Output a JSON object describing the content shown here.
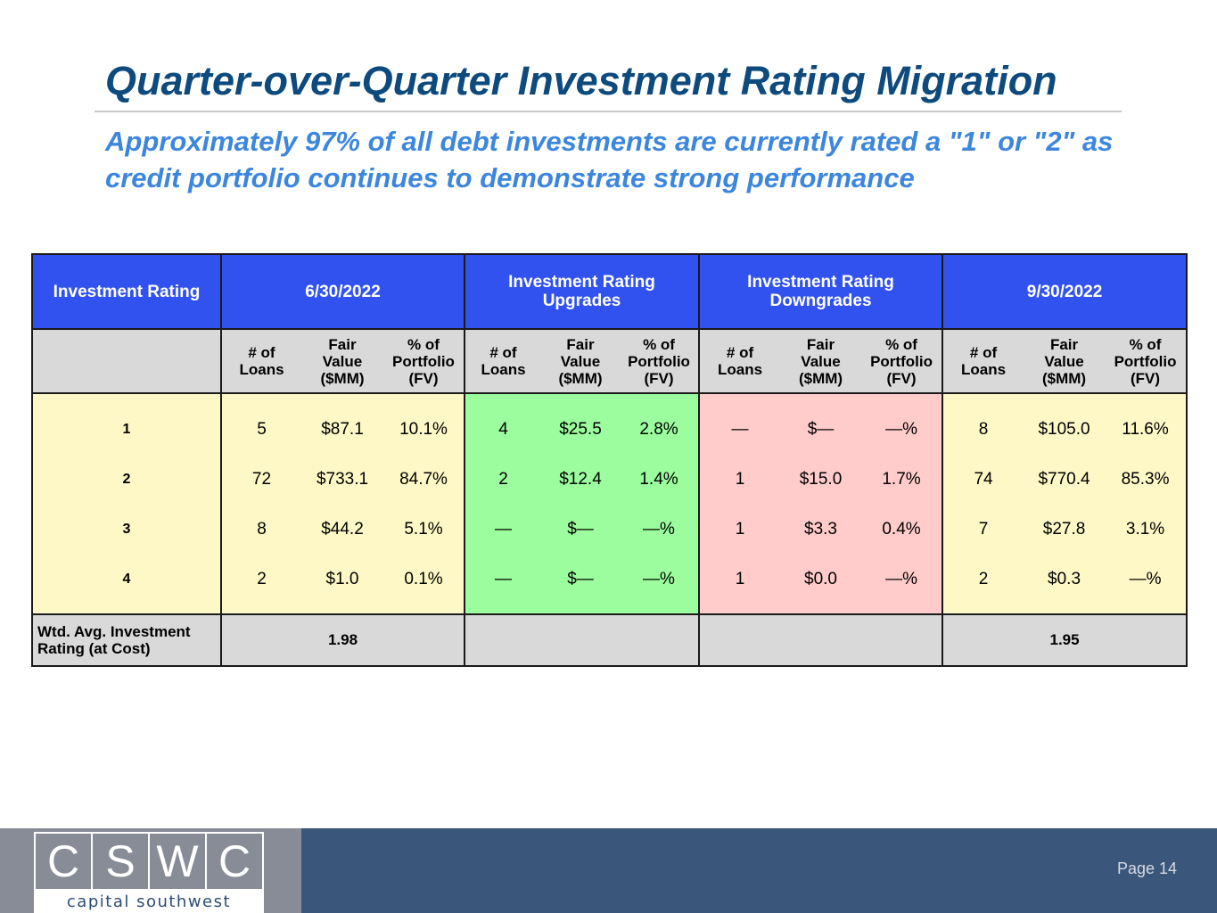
{
  "slide": {
    "title": "Quarter-over-Quarter Investment Rating Migration",
    "subtitle": "Approximately 97% of all debt investments are currently rated a \"1\" or \"2\" as credit portfolio continues to demonstrate strong performance"
  },
  "table": {
    "group_headers": {
      "rating": "Investment Rating",
      "q1": "6/30/2022",
      "upgrades": "Investment Rating Upgrades",
      "downgrades": "Investment Rating Downgrades",
      "q2": "9/30/2022"
    },
    "col_headers": {
      "loans": "# of Loans",
      "fair_value": "Fair Value ($MM)",
      "pct": "% of Portfolio (FV)"
    },
    "rows": [
      {
        "rating": "1",
        "q1": [
          "5",
          "$87.1",
          "10.1%"
        ],
        "up": [
          "4",
          "$25.5",
          "2.8%"
        ],
        "down": [
          "—",
          "$—",
          "—%"
        ],
        "q2": [
          "8",
          "$105.0",
          "11.6%"
        ]
      },
      {
        "rating": "2",
        "q1": [
          "72",
          "$733.1",
          "84.7%"
        ],
        "up": [
          "2",
          "$12.4",
          "1.4%"
        ],
        "down": [
          "1",
          "$15.0",
          "1.7%"
        ],
        "q2": [
          "74",
          "$770.4",
          "85.3%"
        ]
      },
      {
        "rating": "3",
        "q1": [
          "8",
          "$44.2",
          "5.1%"
        ],
        "up": [
          "—",
          "$—",
          "—%"
        ],
        "down": [
          "1",
          "$3.3",
          "0.4%"
        ],
        "q2": [
          "7",
          "$27.8",
          "3.1%"
        ]
      },
      {
        "rating": "4",
        "q1": [
          "2",
          "$1.0",
          "0.1%"
        ],
        "up": [
          "—",
          "$—",
          "—%"
        ],
        "down": [
          "1",
          "$0.0",
          "—%"
        ],
        "q2": [
          "2",
          "$0.3",
          "—%"
        ]
      }
    ],
    "wtd": {
      "label": "Wtd. Avg. Investment Rating (at Cost)",
      "q1": "1.98",
      "q2": "1.95"
    }
  },
  "footer": {
    "logo_letters": [
      "C",
      "S",
      "W",
      "C"
    ],
    "logo_text": "capital southwest",
    "page": "Page 14"
  },
  "colors": {
    "title": "#0d4a7d",
    "subtitle": "#3c86dd",
    "header_blue": "#3152ef",
    "q_yellow": "#fef8c6",
    "upgrade_green": "#9bfd9d",
    "downgrade_pink": "#ffcccb",
    "footer_navy": "#3a567a",
    "footer_gray": "#878c96"
  }
}
